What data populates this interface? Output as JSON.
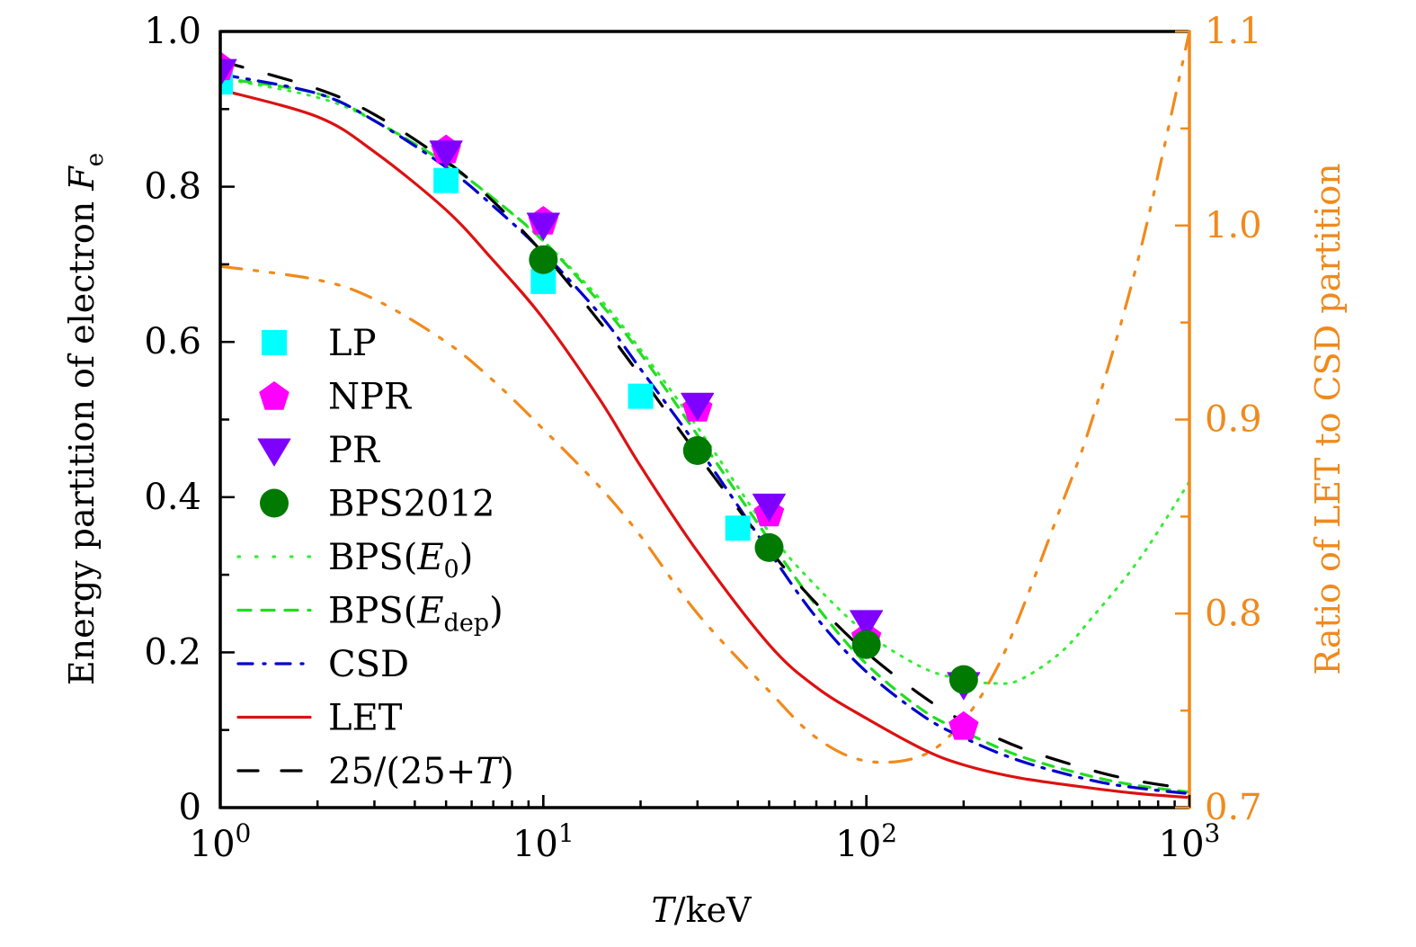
{
  "chart_data": {
    "type": "line",
    "title": "",
    "xlabel": "T/keV",
    "xlabel_italic_part": "T",
    "xlabel_rest": "/keV",
    "ylabel": "Energy partition of electron F_e",
    "ylabel_main": "Energy partition of electron ",
    "ylabel_sym": "F",
    "ylabel_sub": "e",
    "y2label": "Ratio of LET to CSD partition",
    "xscale": "log",
    "xlim": [
      1,
      1000
    ],
    "ylim": [
      0,
      1.0
    ],
    "y2lim": [
      0.7,
      1.1
    ],
    "grid": false,
    "legend_position": "center-left",
    "x_ticks": [
      {
        "value": 1,
        "base": "10",
        "exp": "0"
      },
      {
        "value": 10,
        "base": "10",
        "exp": "1"
      },
      {
        "value": 100,
        "base": "10",
        "exp": "2"
      },
      {
        "value": 1000,
        "base": "10",
        "exp": "3"
      }
    ],
    "y_ticks": [
      {
        "value": 0,
        "label": "0"
      },
      {
        "value": 0.2,
        "label": "0.2"
      },
      {
        "value": 0.4,
        "label": "0.4"
      },
      {
        "value": 0.6,
        "label": "0.6"
      },
      {
        "value": 0.8,
        "label": "0.8"
      },
      {
        "value": 1.0,
        "label": "1.0"
      }
    ],
    "y2_ticks": [
      {
        "value": 0.7,
        "label": "0.7"
      },
      {
        "value": 0.8,
        "label": "0.8"
      },
      {
        "value": 0.9,
        "label": "0.9"
      },
      {
        "value": 1.0,
        "label": "1.0"
      },
      {
        "value": 1.1,
        "label": "1.1"
      }
    ],
    "colors": {
      "axis": "#000000",
      "right_axis": "#f08a1c"
    },
    "marker_series": [
      {
        "name": "LP",
        "marker": "square",
        "color": "#00ffff",
        "x": [
          1,
          5,
          10,
          20,
          40
        ],
        "y": [
          0.935,
          0.808,
          0.678,
          0.53,
          0.36
        ]
      },
      {
        "name": "NPR",
        "marker": "pentagon",
        "color": "#ff00ff",
        "x": [
          1,
          5,
          10,
          30,
          50,
          100,
          200
        ],
        "y": [
          0.955,
          0.848,
          0.756,
          0.515,
          0.38,
          0.22,
          0.105
        ]
      },
      {
        "name": "PR",
        "marker": "triangle-down",
        "color": "#8000ff",
        "x": [
          1,
          5,
          10,
          30,
          50,
          100,
          200
        ],
        "y": [
          0.95,
          0.845,
          0.752,
          0.52,
          0.39,
          0.24,
          0.16
        ]
      },
      {
        "name": "BPS2012",
        "marker": "circle",
        "color": "#007a00",
        "x": [
          10,
          30,
          50,
          100,
          200
        ],
        "y": [
          0.706,
          0.46,
          0.335,
          0.21,
          0.165
        ]
      }
    ],
    "line_series": [
      {
        "name": "BPS(E0)",
        "label_main": "BPS(",
        "label_sym": "E",
        "label_sub": "0",
        "label_end": ")",
        "style": "dotted",
        "color": "#33ee33",
        "axis": "left",
        "x": [
          1,
          2,
          3,
          5,
          7,
          10,
          15,
          20,
          30,
          50,
          70,
          100,
          150,
          200,
          250,
          300,
          400,
          500,
          700,
          1000
        ],
        "y": [
          0.94,
          0.915,
          0.885,
          0.83,
          0.785,
          0.73,
          0.655,
          0.59,
          0.49,
          0.355,
          0.285,
          0.225,
          0.18,
          0.165,
          0.16,
          0.165,
          0.2,
          0.245,
          0.32,
          0.42
        ]
      },
      {
        "name": "BPS(Edep)",
        "label_main": "BPS(",
        "label_sym": "E",
        "label_sub": "dep",
        "label_end": ")",
        "style": "dashed",
        "color": "#22dd22",
        "axis": "left",
        "x": [
          1,
          2,
          3,
          5,
          7,
          10,
          15,
          20,
          30,
          50,
          70,
          100,
          150,
          200,
          300,
          500,
          700,
          1000
        ],
        "y": [
          0.94,
          0.92,
          0.885,
          0.83,
          0.785,
          0.73,
          0.65,
          0.585,
          0.48,
          0.345,
          0.26,
          0.185,
          0.125,
          0.098,
          0.066,
          0.04,
          0.028,
          0.02
        ]
      },
      {
        "name": "CSD",
        "label_main": "CSD",
        "style": "dashdot",
        "color": "#0000cc",
        "axis": "left",
        "x": [
          1,
          2,
          3,
          5,
          7,
          10,
          15,
          20,
          30,
          50,
          70,
          100,
          150,
          200,
          300,
          500,
          700,
          1000
        ],
        "y": [
          0.945,
          0.92,
          0.885,
          0.825,
          0.775,
          0.715,
          0.635,
          0.565,
          0.465,
          0.33,
          0.245,
          0.175,
          0.118,
          0.09,
          0.06,
          0.035,
          0.025,
          0.018
        ]
      },
      {
        "name": "LET",
        "label_main": "LET",
        "style": "solid",
        "color": "#dd1111",
        "axis": "left",
        "x": [
          1,
          2,
          3,
          5,
          7,
          10,
          15,
          20,
          30,
          50,
          70,
          100,
          150,
          200,
          300,
          500,
          700,
          1000
        ],
        "y": [
          0.925,
          0.89,
          0.845,
          0.77,
          0.705,
          0.63,
          0.525,
          0.44,
          0.33,
          0.21,
          0.155,
          0.115,
          0.075,
          0.055,
          0.038,
          0.025,
          0.018,
          0.013
        ]
      },
      {
        "name": "25/(25+T)",
        "label_main": "25/(25+",
        "label_sym": "T",
        "label_end": ")",
        "style": "longdash",
        "color": "#000000",
        "axis": "left",
        "formula": "25/(25+T)",
        "x": [
          1,
          2,
          3,
          5,
          7,
          10,
          15,
          20,
          30,
          50,
          70,
          100,
          150,
          200,
          300,
          500,
          700,
          1000
        ],
        "y": [
          0.962,
          0.926,
          0.893,
          0.833,
          0.781,
          0.714,
          0.625,
          0.556,
          0.455,
          0.333,
          0.263,
          0.2,
          0.143,
          0.111,
          0.077,
          0.048,
          0.034,
          0.024
        ]
      }
    ],
    "ratio_series": {
      "name": "Ratio of LET to CSD partition",
      "style": "dashdotdot",
      "color": "#f08a1c",
      "axis": "right",
      "x": [
        1,
        2,
        3,
        5,
        7,
        10,
        15,
        20,
        30,
        50,
        70,
        100,
        150,
        200,
        250,
        300,
        400,
        500,
        700,
        1000
      ],
      "y": [
        0.979,
        0.972,
        0.962,
        0.94,
        0.92,
        0.895,
        0.865,
        0.84,
        0.8,
        0.76,
        0.736,
        0.724,
        0.727,
        0.745,
        0.77,
        0.8,
        0.855,
        0.9,
        0.985,
        1.1
      ]
    }
  }
}
